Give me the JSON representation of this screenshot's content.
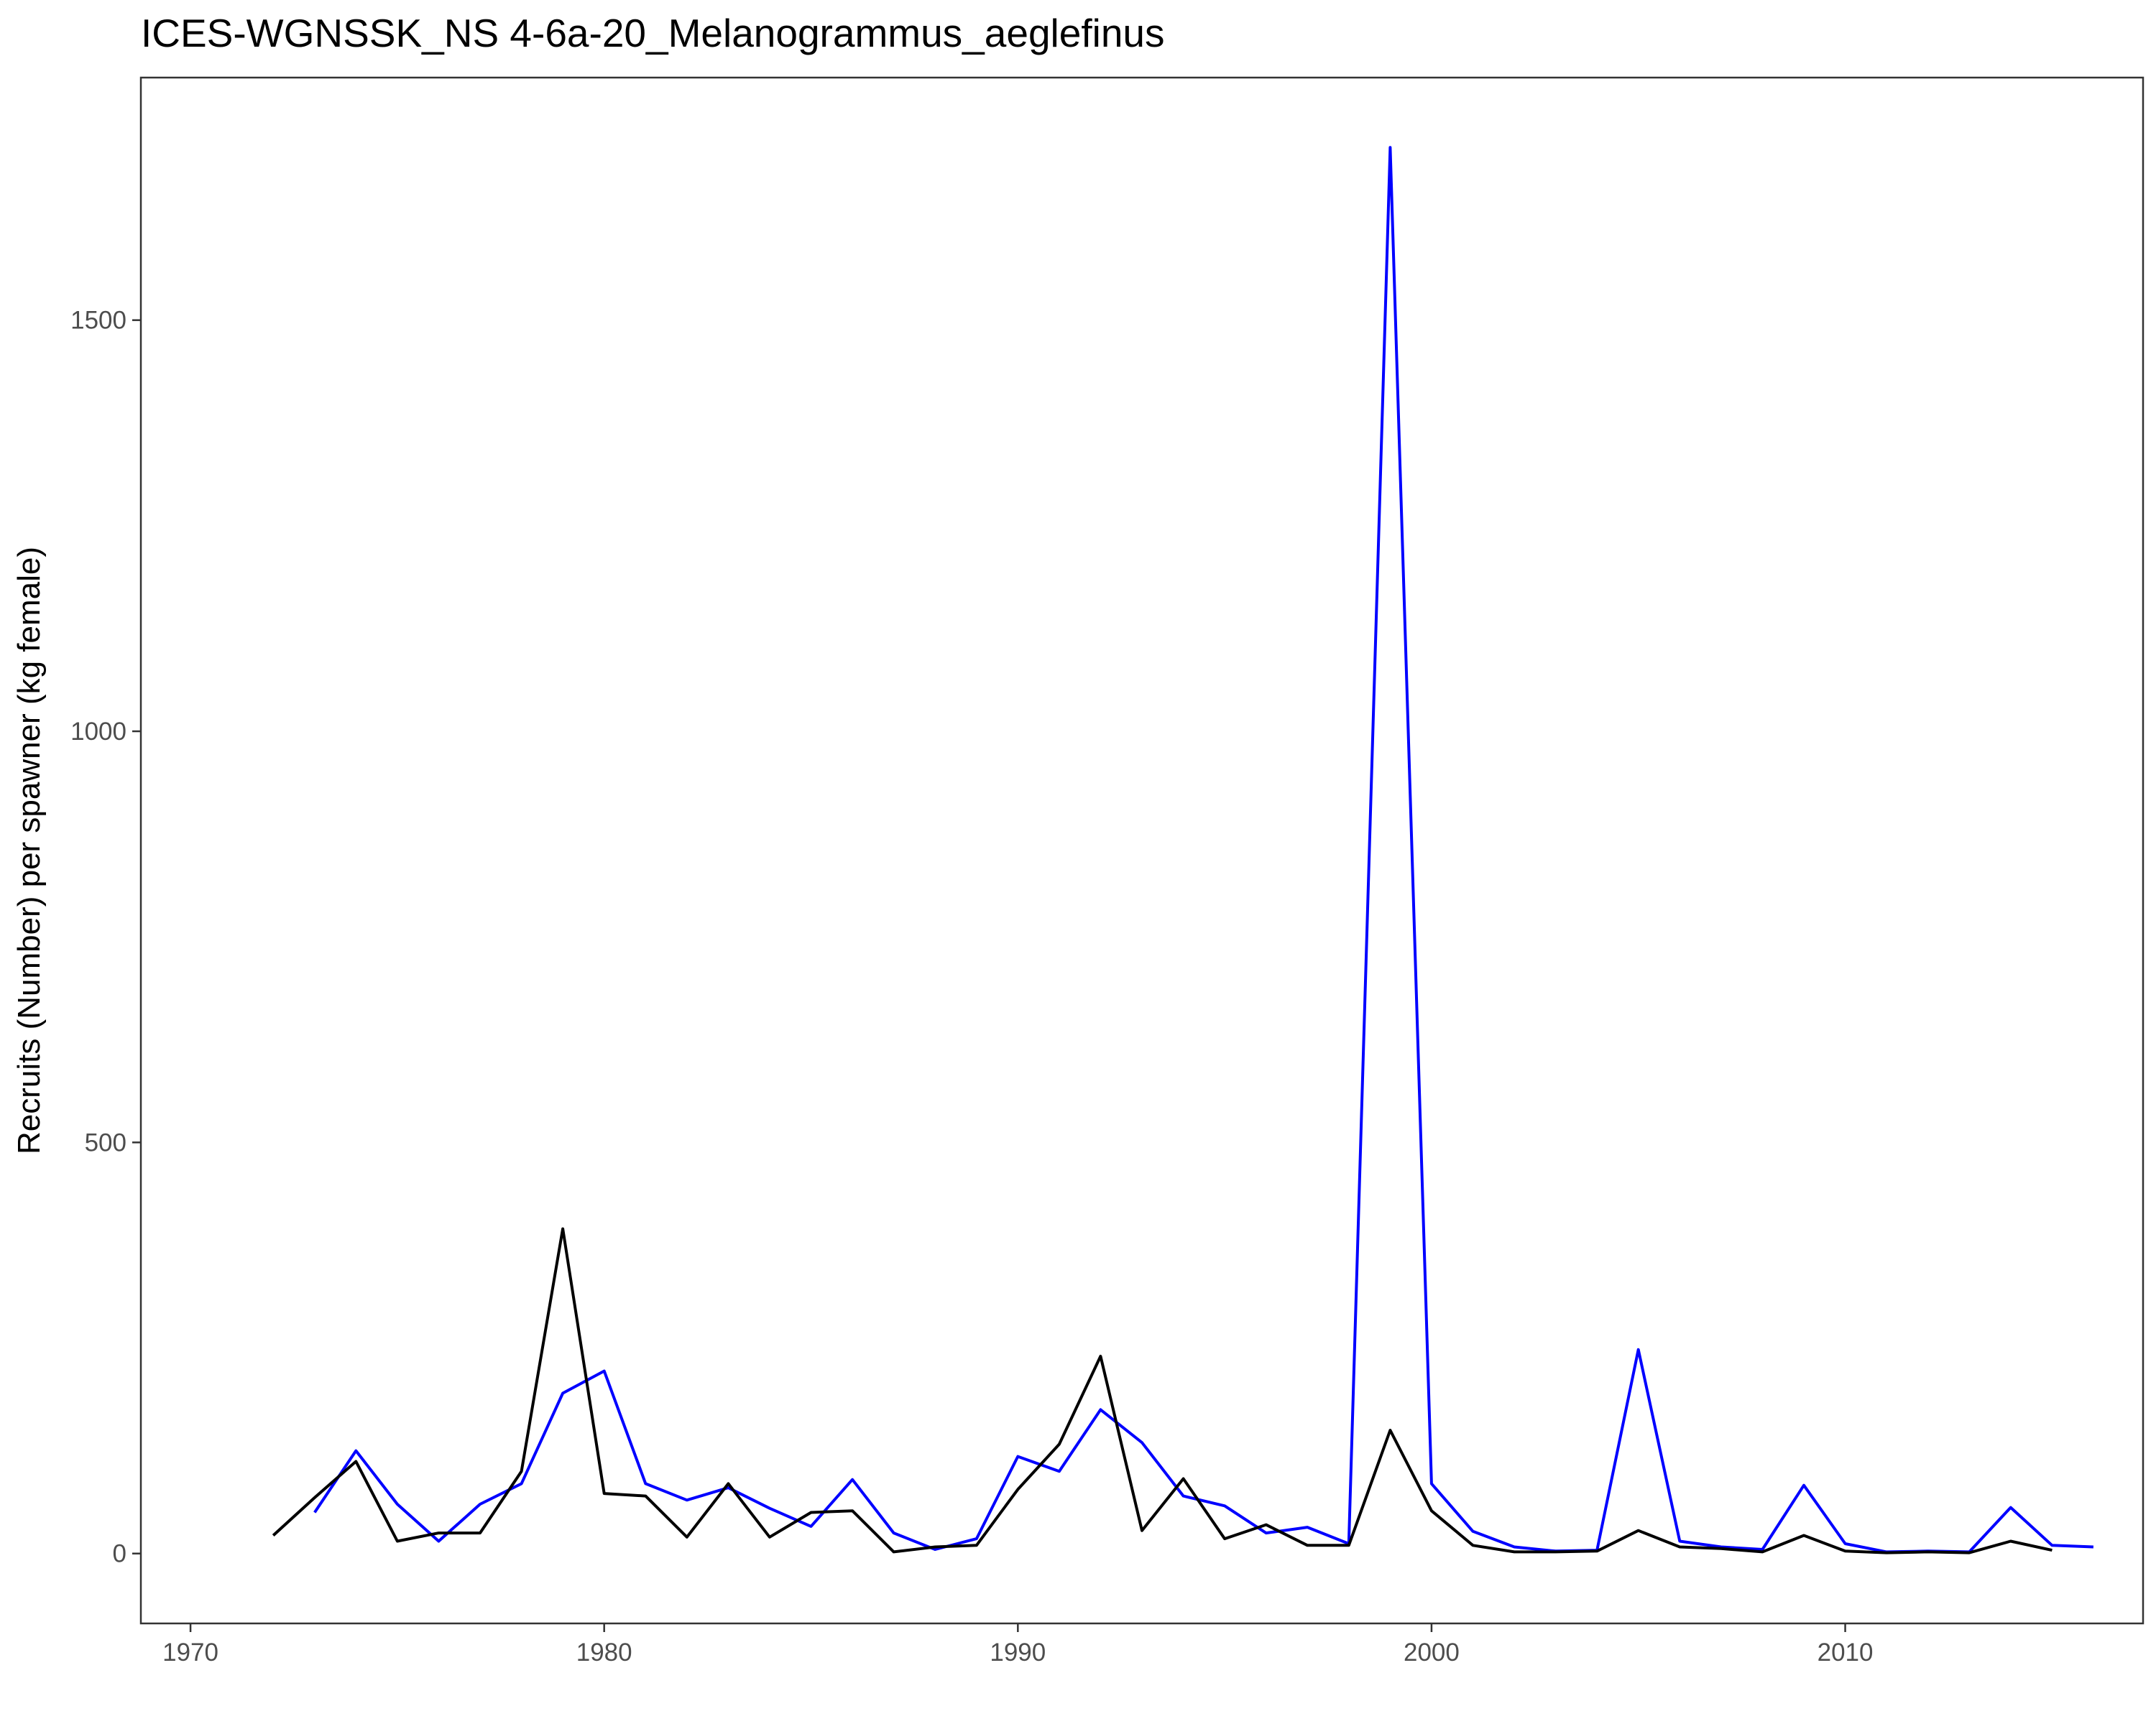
{
  "chart_data": {
    "type": "line",
    "title": "ICES-WGNSSK_NS  4-6a-20_Melanogrammus_aeglefinus",
    "xlabel": "",
    "ylabel": "Recruits (Number) per spawner (kg female)",
    "xlim": [
      1968.8,
      2017.2
    ],
    "ylim": [
      -85,
      1795
    ],
    "x_ticks": [
      1970,
      1980,
      1990,
      2000,
      2010
    ],
    "y_ticks": [
      0,
      500,
      1000,
      1500
    ],
    "grid": false,
    "legend": "none",
    "series": [
      {
        "color": "#0000ff",
        "x": [
          1973,
          1974,
          1975,
          1976,
          1977,
          1978,
          1979,
          1980,
          1981,
          1982,
          1983,
          1984,
          1985,
          1986,
          1987,
          1988,
          1989,
          1990,
          1991,
          1992,
          1993,
          1994,
          1995,
          1996,
          1997,
          1998,
          1999,
          2000,
          2001,
          2002,
          2003,
          2004,
          2005,
          2006,
          2007,
          2008,
          2009,
          2010,
          2011,
          2012,
          2013,
          2014,
          2015,
          2016
        ],
        "y": [
          50,
          125,
          60,
          15,
          60,
          85,
          195,
          222,
          85,
          65,
          80,
          55,
          33,
          90,
          25,
          5,
          18,
          118,
          100,
          175,
          135,
          70,
          58,
          25,
          32,
          12,
          1710,
          85,
          27,
          8,
          3,
          4,
          248,
          15,
          8,
          5,
          83,
          12,
          2,
          3,
          2,
          56,
          10,
          8
        ]
      },
      {
        "color": "#000000",
        "x": [
          1972,
          1973,
          1974,
          1975,
          1976,
          1977,
          1978,
          1979,
          1980,
          1981,
          1982,
          1983,
          1984,
          1985,
          1986,
          1987,
          1988,
          1989,
          1990,
          1991,
          1992,
          1993,
          1994,
          1995,
          1996,
          1997,
          1998,
          1999,
          2000,
          2001,
          2002,
          2003,
          2004,
          2005,
          2006,
          2007,
          2008,
          2009,
          2010,
          2011,
          2012,
          2013,
          2014,
          2015
        ],
        "y": [
          22,
          68,
          112,
          15,
          25,
          25,
          100,
          395,
          73,
          70,
          20,
          85,
          20,
          50,
          52,
          2,
          8,
          10,
          78,
          133,
          240,
          28,
          91,
          18,
          35,
          10,
          10,
          150,
          52,
          10,
          2,
          2,
          3,
          28,
          8,
          6,
          2,
          22,
          3,
          1,
          2,
          1,
          15,
          4
        ]
      }
    ]
  }
}
